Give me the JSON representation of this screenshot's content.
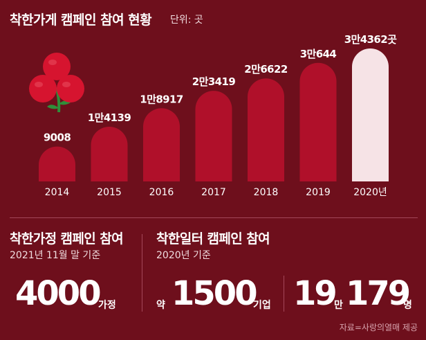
{
  "header": {
    "title": "착한가게 캠페인 참여 현황",
    "unit": "단위: 곳"
  },
  "chart_data": {
    "type": "bar",
    "title": "착한가게 캠페인 참여 현황",
    "unit": "곳",
    "categories": [
      "2014",
      "2015",
      "2016",
      "2017",
      "2018",
      "2019",
      "2020년"
    ],
    "values": [
      9008,
      14139,
      18917,
      23419,
      26622,
      30644,
      34362
    ],
    "data_labels": [
      "9008",
      "1만4139",
      "1만8917",
      "2만3419",
      "2만6622",
      "3만644",
      "3만4362곳"
    ],
    "colors": {
      "bar": "#b0102a",
      "highlight": "#f6e3e6",
      "background": "#6e0f1c"
    },
    "highlight_last": true
  },
  "stats": {
    "left": {
      "title": "착한가정 캠페인 참여",
      "subtitle": "2021년 11월 말 기준",
      "value": "4000",
      "suffix": "가정"
    },
    "right": {
      "title": "착한일터 캠페인 참여",
      "subtitle": "2020년 기준",
      "prefix": "약",
      "value": "1500",
      "suffix": "기업",
      "people_value_1": "19",
      "people_unit_1": "만",
      "people_value_2": "179",
      "people_unit_2": "명"
    }
  },
  "source": "자료=사랑의열매 제공",
  "icons": [
    "flower-icon"
  ]
}
